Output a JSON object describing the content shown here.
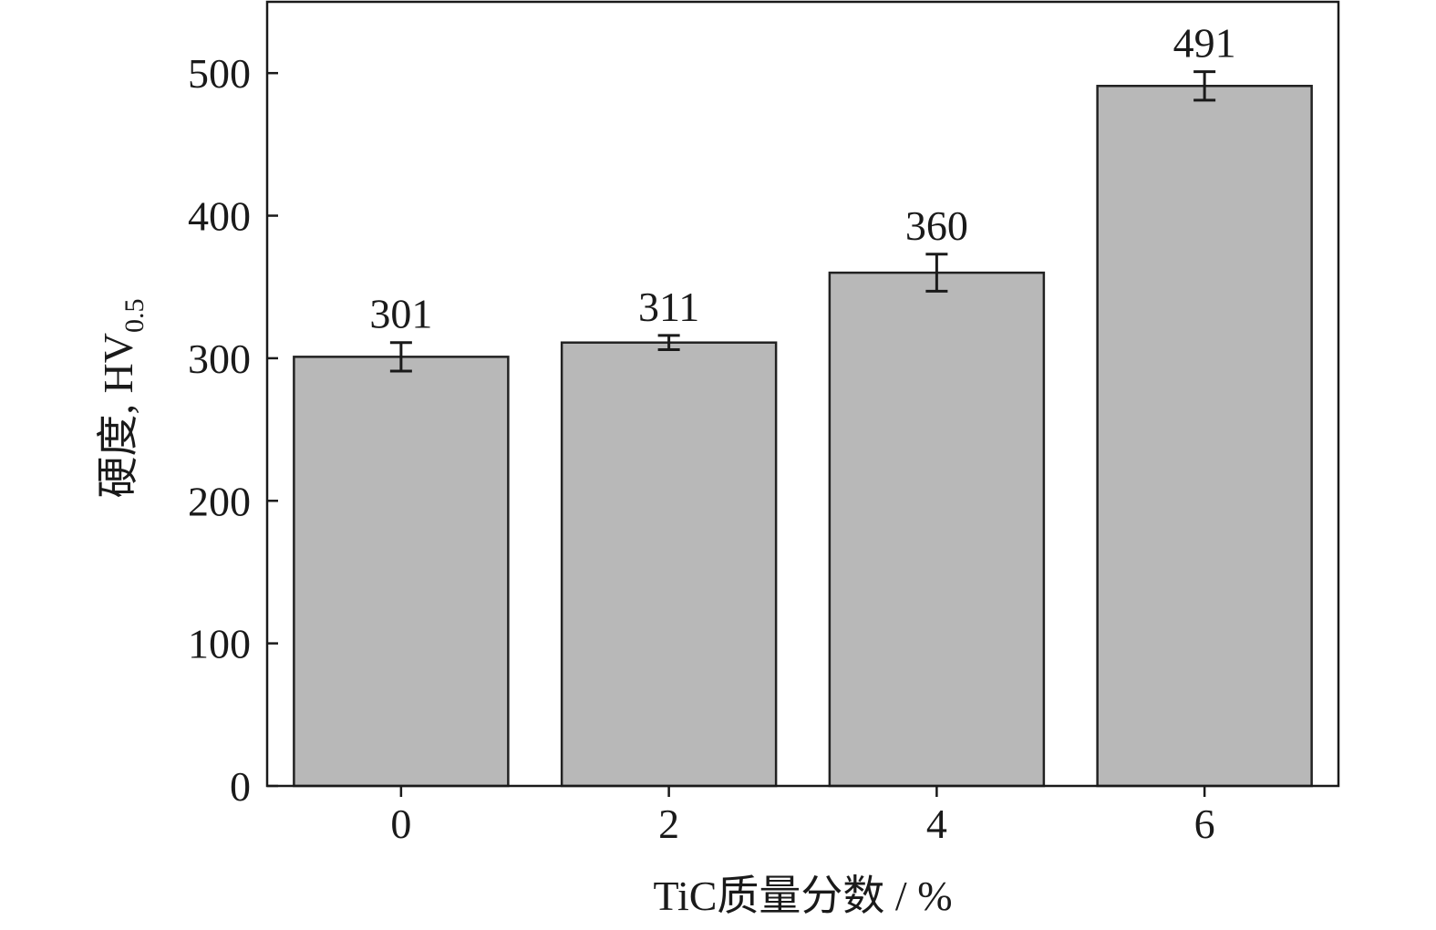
{
  "chart_data": {
    "type": "bar",
    "xlabel": "TiC质量分数 / %",
    "ylabel_main": "硬度, HV",
    "ylabel_sub": "0.5",
    "categories": [
      "0",
      "2",
      "4",
      "6"
    ],
    "values": [
      301,
      311,
      360,
      491
    ],
    "errors": [
      10,
      5,
      13,
      10
    ],
    "data_labels": [
      "301",
      "311",
      "360",
      "491"
    ],
    "ylim": [
      0,
      550
    ],
    "yticks": [
      0,
      100,
      200,
      300,
      400,
      500
    ],
    "bar_color": "#b8b8b8",
    "edge_color": "#222222",
    "grid": false,
    "legend": "none"
  }
}
